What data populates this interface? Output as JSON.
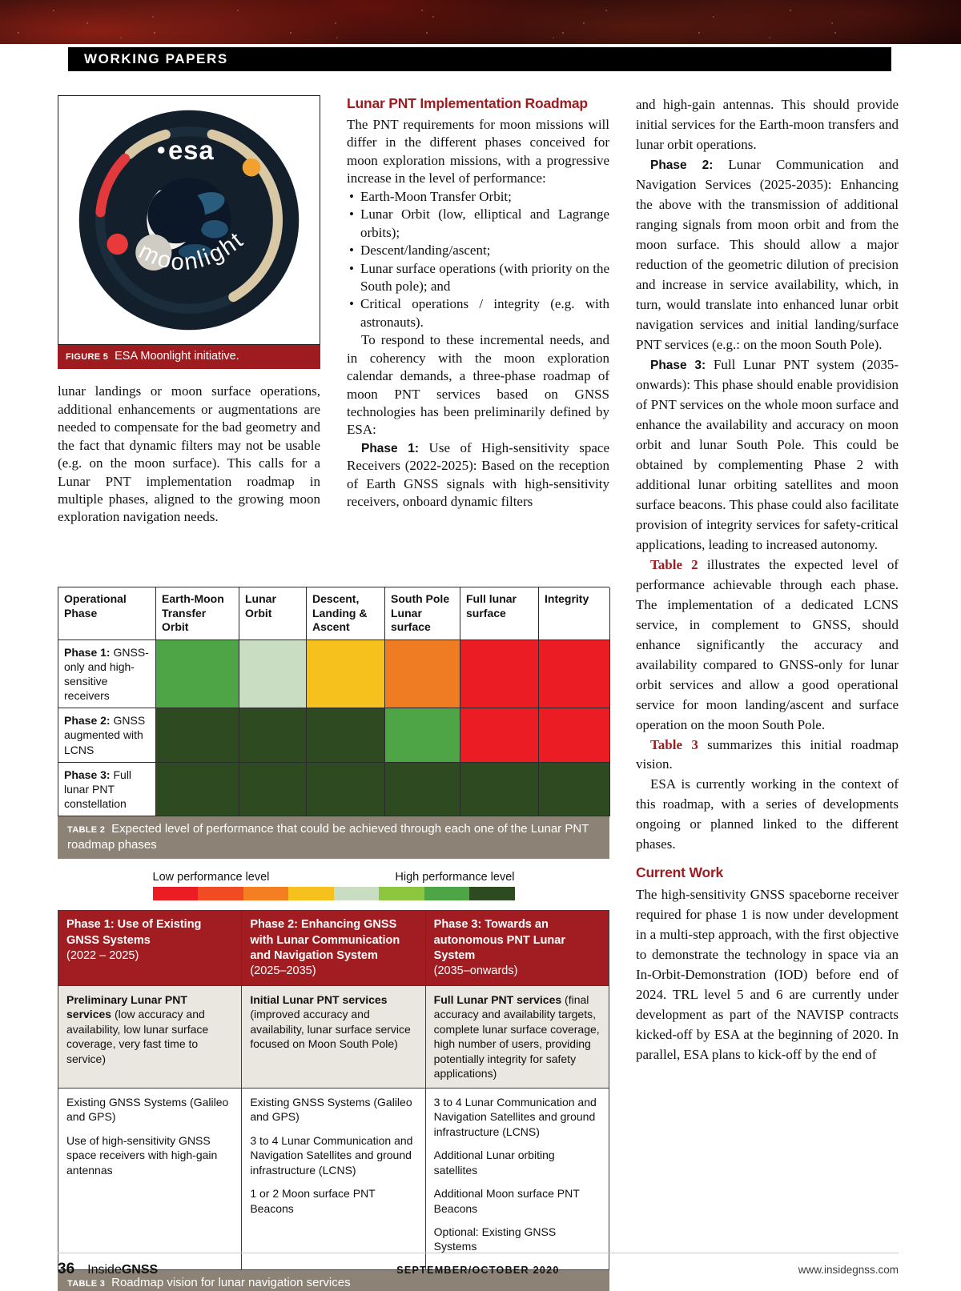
{
  "banner": {
    "section_label": "WORKING PAPERS"
  },
  "figure5": {
    "caption_label": "FIGURE 5",
    "caption_text": "ESA Moonlight initiative.",
    "logo": {
      "esa_text": "esa",
      "moonlight_text": "moonlight"
    }
  },
  "col1": {
    "body": "lunar landings or moon surface operations, additional enhancements or augmentations are needed to compensate for the bad geometry and the fact that dynamic filters may not be usable (e.g. on the moon surface). This calls for a Lunar PNT implementation roadmap in multiple phases, aligned to the growing moon exploration navigation needs."
  },
  "col2": {
    "heading": "Lunar PNT Implementation Roadmap",
    "para1": "The PNT requirements for moon missions will differ in the different phases conceived for moon exploration missions, with a progressive increase in the level of performance:",
    "bullets": [
      "Earth-Moon Transfer Orbit;",
      "Lunar Orbit (low, elliptical and Lagrange orbits);",
      "Descent/landing/ascent;",
      "Lunar surface operations (with priority on the South pole); and",
      "Critical operations / integrity (e.g. with astronauts)."
    ],
    "para2": "To respond to these incremental needs, and in coherency with the moon exploration calendar demands, a three-phase roadmap of moon PNT services based on GNSS technologies has been preliminarily defined by ESA:",
    "phase1_label": "Phase 1:",
    "phase1_text": " Use of High-sensitivity space Receivers (2022-2025): Based on the reception of Earth GNSS signals with high-sensitivity receivers, onboard dynamic filters"
  },
  "col3": {
    "para1": "and high-gain antennas. This should provide initial services for the Earth-moon transfers and lunar orbit operations.",
    "phase2_label": "Phase 2:",
    "phase2_text": " Lunar Communication and Navigation Services (2025-2035): Enhancing the above with the transmission of additional ranging signals from moon orbit and from the moon surface. This should allow a major reduction of the geometric dilution of precision and increase in service availability, which, in turn, would translate into enhanced lunar orbit navigation services and initial landing/surface PNT services (e.g.: on the moon South Pole).",
    "phase3_label": "Phase 3:",
    "phase3_text": " Full Lunar PNT system (2035-onwards): This phase should enable providision of PNT services on the whole moon surface and enhance the availability and accuracy on moon orbit and lunar South Pole. This could be obtained by complementing Phase 2 with additional lunar orbiting satellites and moon surface beacons. This phase could also facilitate provision of integrity services for safety-critical applications, leading to increased autonomy.",
    "table2_ref_label": "Table 2",
    "table2_ref_text": " illustrates the expected level of performance achievable through each phase. The implementation of a dedicated LCNS service, in complement to GNSS, should enhance significantly the accuracy and availability compared to GNSS-only for lunar orbit services and allow a good operational service for moon landing/ascent and surface operation on the moon South Pole.",
    "table3_ref_label": "Table 3",
    "table3_ref_text": " summarizes this initial roadmap vision.",
    "para_esa": "ESA is currently working in the context of this roadmap, with a series of developments ongoing or planned linked to the different phases.",
    "current_work_heading": "Current Work",
    "current_work_text": "The high-sensitivity GNSS spaceborne receiver required for phase 1 is now under development in a multi-step approach, with the first objective to demonstrate the technology in space via an In-Orbit-Demonstration (IOD) before end of 2024. TRL level 5 and 6 are currently under development as part of the NAVISP contracts kicked-off by ESA at the beginning of 2020. In parallel, ESA plans to kick-off by the end of"
  },
  "table2": {
    "columns": [
      "Operational Phase",
      "Earth-Moon Transfer Orbit",
      "Lunar Orbit",
      "Descent, Landing & Ascent",
      "South Pole Lunar surface",
      "Full lunar surface",
      "Integrity"
    ],
    "rows": [
      {
        "label_bold": "Phase 1:",
        "label_rest": " GNSS-only and high-sensitive receivers",
        "cells": [
          "#4ea546",
          "#c9ddc2",
          "#f6c01d",
          "#ef7c23",
          "#ec1c24",
          "#ec1c24"
        ]
      },
      {
        "label_bold": "Phase 2:",
        "label_rest": " GNSS augmented with LCNS",
        "cells": [
          "#2e4a20",
          "#2e4a20",
          "#2e4a20",
          "#4ea546",
          "#ec1c24",
          "#ec1c24"
        ]
      },
      {
        "label_bold": "Phase 3:",
        "label_rest": " Full lunar PNT constellation",
        "cells": [
          "#2e4a20",
          "#2e4a20",
          "#2e4a20",
          "#2e4a20",
          "#2e4a20",
          "#2e4a20"
        ]
      }
    ],
    "caption_label": "TABLE 2",
    "caption_text": "Expected level of performance that could be achieved through each one of the Lunar PNT roadmap phases"
  },
  "legend": {
    "low_label": "Low performance level",
    "high_label": "High performance level",
    "colors": [
      "#ec1c24",
      "#f04b23",
      "#f57e20",
      "#f6c01d",
      "#c9ddc2",
      "#8cc63e",
      "#4ea546",
      "#2e4a20"
    ]
  },
  "table3": {
    "headers": [
      {
        "bold": "Phase 1: Use of Existing GNSS Systems",
        "years": "(2022 – 2025)"
      },
      {
        "bold": "Phase 2: Enhancing GNSS with Lunar Communication and Navigation System",
        "years": "(2025–2035)"
      },
      {
        "bold": "Phase 3: Towards an autonomous PNT Lunar System",
        "years": "(2035–onwards)"
      }
    ],
    "services_row": [
      {
        "bold": "Preliminary Lunar PNT services",
        "rest": " (low accuracy and availability, low lunar surface coverage, very fast time to service)"
      },
      {
        "bold": "Initial Lunar PNT services",
        "rest": " (improved accuracy and availability, lunar surface service focused on Moon South Pole)"
      },
      {
        "bold": "Full Lunar PNT services",
        "rest": " (final accuracy and availability targets, complete lunar surface coverage, high number of users, providing potentially integrity for safety applications)"
      }
    ],
    "systems_row": [
      [
        "Existing GNSS Systems (Galileo and GPS)",
        "Use of high-sensitivity GNSS space receivers with high-gain antennas"
      ],
      [
        "Existing GNSS Systems (Galileo and GPS)",
        "3 to 4 Lunar Communication and Navigation Satellites and ground infrastructure (LCNS)",
        "1 or 2 Moon surface PNT Beacons"
      ],
      [
        "3 to 4 Lunar Communication and Navigation Satellites and ground infrastructure (LCNS)",
        "Additional Lunar orbiting satellites",
        "Additional Moon surface PNT Beacons",
        "Optional: Existing GNSS Systems"
      ]
    ],
    "caption_label": "TABLE 3",
    "caption_text": "Roadmap vision for lunar navigation services"
  },
  "footer": {
    "page_number": "36",
    "magazine_inside": "Inside",
    "magazine_gnss": "GNSS",
    "issue": "SEPTEMBER/OCTOBER 2020",
    "website": "www.insidegnss.com"
  }
}
